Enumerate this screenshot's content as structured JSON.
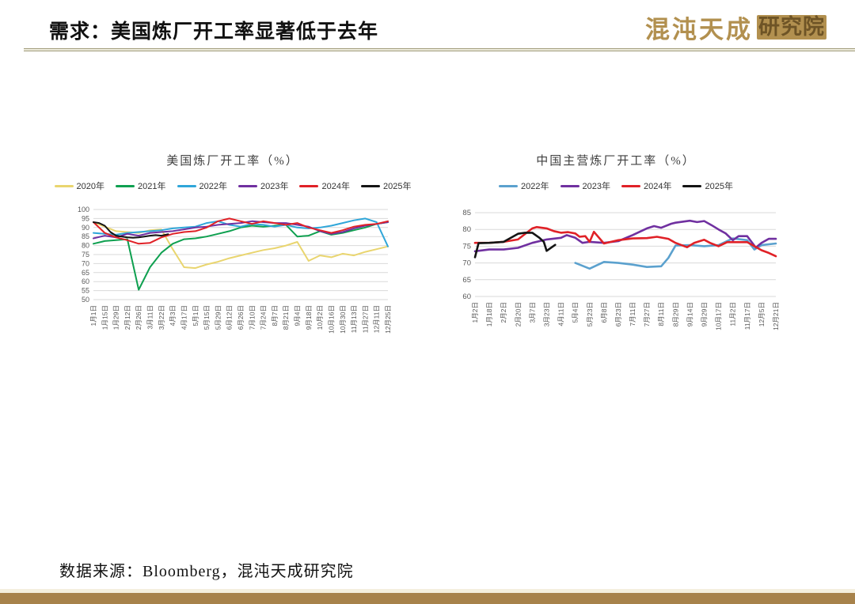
{
  "header": {
    "title": "需求：美国炼厂开工率显著低于去年",
    "logo": {
      "script": "混沌天成",
      "seal": "研究院"
    }
  },
  "footer": {
    "source": "数据来源：Bloomberg，混沌天成研究院"
  },
  "colors": {
    "accent_gold": "#b2904f",
    "bottom_bar": "#a7824b",
    "grid": "#d9d9d9",
    "tick_text": "#595959"
  },
  "chart_data": [
    {
      "type": "line",
      "title": "美国炼厂开工率（%）",
      "ylim": [
        50,
        100
      ],
      "ytick_step": 5,
      "grid": true,
      "legend_position": "top",
      "categories": [
        "1月1日",
        "1月15日",
        "1月29日",
        "2月12日",
        "2月26日",
        "3月11日",
        "3月22日",
        "4月3日",
        "4月17日",
        "5月1日",
        "5月15日",
        "5月29日",
        "6月12日",
        "6月26日",
        "7月10日",
        "7月24日",
        "8月7日",
        "8月21日",
        "9月4日",
        "9月18日",
        "10月2日",
        "10月16日",
        "10月30日",
        "11月13日",
        "11月27日",
        "12月11日",
        "12月25日"
      ],
      "series": [
        {
          "name": "2020年",
          "color": "#e9d56f",
          "values": [
            93,
            90.5,
            88,
            87.5,
            87,
            88.5,
            89,
            78,
            68,
            67.5,
            69.5,
            71,
            73,
            74.5,
            76,
            77.5,
            78.5,
            80,
            82,
            71.5,
            74.5,
            73.5,
            75.5,
            74.5,
            76.5,
            78,
            79.5
          ]
        },
        {
          "name": "2021年",
          "color": "#0fa050",
          "values": [
            81,
            82.5,
            83,
            83.5,
            55.5,
            68,
            76,
            81,
            83.5,
            84,
            85,
            86.5,
            88,
            90,
            91,
            90.5,
            91,
            91.5,
            85,
            85.5,
            88,
            86,
            87,
            88.5,
            90,
            92,
            93
          ]
        },
        {
          "name": "2022年",
          "color": "#2fa6d9",
          "values": [
            87,
            86.5,
            86,
            87,
            87.5,
            88,
            88.5,
            89.5,
            90,
            90.5,
            92.5,
            93.5,
            91.5,
            90.5,
            92,
            91.5,
            90.5,
            91.5,
            90,
            89.5,
            90,
            91,
            92.5,
            94,
            95,
            93,
            79.5
          ]
        },
        {
          "name": "2023年",
          "color": "#7030a0",
          "values": [
            84,
            85.5,
            84.5,
            86.5,
            85.5,
            87,
            87.5,
            88,
            89,
            90,
            90.5,
            91.5,
            92,
            92.5,
            93.5,
            93,
            92.5,
            92.5,
            91.5,
            90.5,
            88,
            86.5,
            87.5,
            89.5,
            91,
            92,
            93
          ]
        },
        {
          "name": "2024年",
          "color": "#e02127",
          "values": [
            93,
            87,
            84.5,
            83,
            81,
            81.5,
            84.5,
            86.5,
            87.5,
            88,
            90,
            93.5,
            95,
            93.5,
            92,
            93.5,
            92.5,
            91.5,
            92.5,
            90,
            88.5,
            87,
            88.5,
            90.5,
            91.5,
            92,
            93.5
          ]
        },
        {
          "name": "2025年",
          "color": "#141414",
          "x": [
            0,
            0.5,
            1,
            1.5,
            2,
            2.5,
            3,
            3.5,
            4,
            4.5,
            5,
            5.5,
            6,
            6.6
          ],
          "values": [
            93,
            92.5,
            91,
            87.5,
            85.5,
            85,
            84.5,
            84.3,
            84.5,
            85,
            85.5,
            85.8,
            85.5,
            86.3
          ]
        }
      ]
    },
    {
      "type": "line",
      "title": "中国主营炼厂开工率（%）",
      "ylim": [
        60,
        85
      ],
      "ytick_step": 5,
      "grid": true,
      "legend_position": "top",
      "categories": [
        "1月2日",
        "1月18日",
        "2月2日",
        "2月20日",
        "3月7日",
        "3月23日",
        "4月11日",
        "5月4日",
        "5月23日",
        "6月8日",
        "6月23日",
        "7月11日",
        "7月27日",
        "8月11日",
        "8月29日",
        "9月14日",
        "9月29日",
        "10月17日",
        "11月2日",
        "11月17日",
        "12月5日",
        "12月21日"
      ],
      "series": [
        {
          "name": "2022年",
          "color": "#5ba1ce",
          "x": [
            7,
            8,
            9,
            10,
            11,
            12,
            13,
            13.5,
            14,
            15,
            16,
            17,
            18,
            19,
            19.5,
            20,
            21
          ],
          "values": [
            70,
            68.3,
            70.3,
            70,
            69.5,
            68.8,
            69,
            71.5,
            75.2,
            75.3,
            75,
            75.3,
            77.3,
            76.8,
            74,
            75.3,
            75.8
          ]
        },
        {
          "name": "2023年",
          "color": "#7030a0",
          "x": [
            0,
            1,
            2,
            3,
            4,
            5,
            6,
            6.4,
            7,
            7.5,
            8,
            9,
            10,
            11,
            12,
            12.5,
            13,
            13.7,
            14,
            15,
            15.5,
            16,
            16.5,
            17,
            17.5,
            18,
            18.4,
            19,
            19.6,
            20,
            20.5,
            21
          ],
          "values": [
            73.5,
            74,
            74,
            74.5,
            76,
            77,
            77.5,
            78.3,
            77.5,
            76,
            76.3,
            76,
            76.5,
            78.3,
            80.3,
            81,
            80.5,
            81.7,
            82,
            82.6,
            82.2,
            82.5,
            81.3,
            80,
            78.8,
            76.8,
            78,
            78,
            74.6,
            76,
            77.2,
            77.2
          ]
        },
        {
          "name": "2024年",
          "color": "#e02127",
          "x": [
            0,
            1,
            2,
            3,
            4,
            4.3,
            5,
            5.5,
            6,
            6.5,
            7,
            7.3,
            7.7,
            8,
            8.3,
            9,
            9.5,
            10,
            11,
            12,
            12.7,
            13.5,
            14,
            14.8,
            15.3,
            16,
            16.4,
            17,
            17.6,
            18,
            19,
            19.5,
            20,
            20.5,
            21
          ],
          "values": [
            76,
            76,
            76.3,
            77,
            80.3,
            80.7,
            80.3,
            79.5,
            79,
            79.2,
            78.8,
            77.8,
            78,
            76.3,
            79.3,
            75.8,
            76.3,
            76.8,
            77.3,
            77.4,
            77.8,
            77.2,
            76,
            74.7,
            76,
            76.9,
            76,
            75,
            76.2,
            76.2,
            76.2,
            75,
            73.8,
            73,
            72
          ]
        },
        {
          "name": "2025年",
          "color": "#141414",
          "x": [
            0,
            0.25,
            1,
            2,
            3,
            3.5,
            4,
            4.5,
            4.8,
            5,
            5.6
          ],
          "values": [
            71.7,
            75.9,
            76,
            76.3,
            78.7,
            79,
            79,
            77.5,
            76.3,
            73.6,
            75.4
          ]
        }
      ]
    }
  ]
}
